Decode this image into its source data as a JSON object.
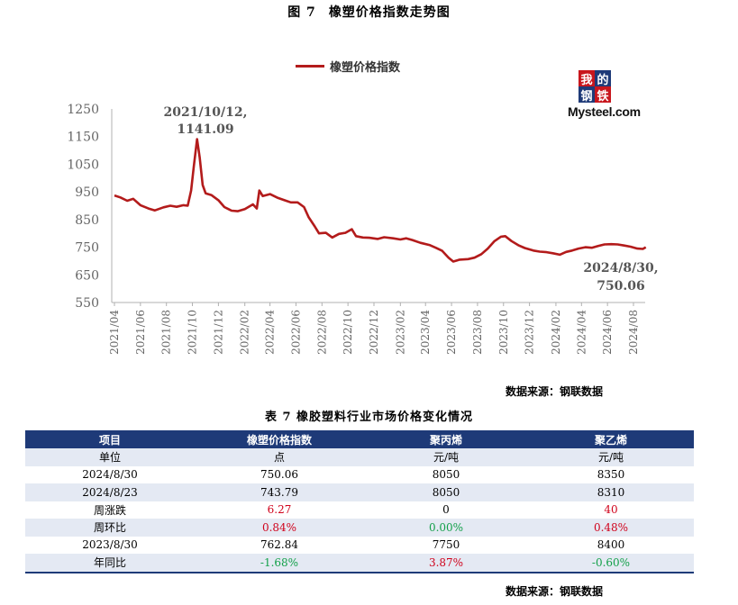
{
  "figure": {
    "label": "图 7",
    "title": "橡塑价格指数走势图"
  },
  "chart_data": {
    "type": "line",
    "series": [
      {
        "name": "橡塑价格指数",
        "color": "#b31b1b",
        "points": [
          [
            "2021-04-01",
            937
          ],
          [
            "2021-04-15",
            930
          ],
          [
            "2021-05-01",
            918
          ],
          [
            "2021-05-15",
            925
          ],
          [
            "2021-06-01",
            902
          ],
          [
            "2021-06-20",
            890
          ],
          [
            "2021-07-05",
            883
          ],
          [
            "2021-07-25",
            894
          ],
          [
            "2021-08-10",
            900
          ],
          [
            "2021-08-25",
            896
          ],
          [
            "2021-09-10",
            902
          ],
          [
            "2021-09-20",
            900
          ],
          [
            "2021-09-28",
            955
          ],
          [
            "2021-10-04",
            1040
          ],
          [
            "2021-10-12",
            1141.09
          ],
          [
            "2021-10-18",
            1075
          ],
          [
            "2021-10-25",
            975
          ],
          [
            "2021-11-01",
            945
          ],
          [
            "2021-11-15",
            938
          ],
          [
            "2021-12-01",
            920
          ],
          [
            "2021-12-15",
            895
          ],
          [
            "2022-01-01",
            882
          ],
          [
            "2022-01-15",
            880
          ],
          [
            "2022-02-01",
            888
          ],
          [
            "2022-02-20",
            905
          ],
          [
            "2022-03-01",
            890
          ],
          [
            "2022-03-07",
            955
          ],
          [
            "2022-03-15",
            935
          ],
          [
            "2022-04-01",
            942
          ],
          [
            "2022-04-20",
            928
          ],
          [
            "2022-05-05",
            920
          ],
          [
            "2022-05-20",
            912
          ],
          [
            "2022-06-05",
            912
          ],
          [
            "2022-06-20",
            895
          ],
          [
            "2022-07-01",
            858
          ],
          [
            "2022-07-15",
            825
          ],
          [
            "2022-07-25",
            800
          ],
          [
            "2022-08-10",
            802
          ],
          [
            "2022-08-25",
            785
          ],
          [
            "2022-09-10",
            798
          ],
          [
            "2022-09-25",
            802
          ],
          [
            "2022-10-10",
            815
          ],
          [
            "2022-10-20",
            790
          ],
          [
            "2022-11-05",
            785
          ],
          [
            "2022-11-20",
            784
          ],
          [
            "2022-12-10",
            780
          ],
          [
            "2022-12-25",
            786
          ],
          [
            "2023-01-15",
            782
          ],
          [
            "2023-02-01",
            778
          ],
          [
            "2023-02-15",
            782
          ],
          [
            "2023-03-01",
            776
          ],
          [
            "2023-03-20",
            766
          ],
          [
            "2023-04-10",
            758
          ],
          [
            "2023-04-25",
            748
          ],
          [
            "2023-05-10",
            737
          ],
          [
            "2023-05-25",
            712
          ],
          [
            "2023-06-05",
            698
          ],
          [
            "2023-06-20",
            705
          ],
          [
            "2023-07-10",
            707
          ],
          [
            "2023-07-25",
            712
          ],
          [
            "2023-08-10",
            725
          ],
          [
            "2023-08-25",
            745
          ],
          [
            "2023-09-10",
            772
          ],
          [
            "2023-09-25",
            788
          ],
          [
            "2023-10-05",
            790
          ],
          [
            "2023-10-20",
            772
          ],
          [
            "2023-11-05",
            757
          ],
          [
            "2023-11-20",
            747
          ],
          [
            "2023-12-10",
            738
          ],
          [
            "2023-12-25",
            734
          ],
          [
            "2024-01-10",
            732
          ],
          [
            "2024-01-25",
            728
          ],
          [
            "2024-02-10",
            723
          ],
          [
            "2024-02-25",
            733
          ],
          [
            "2024-03-10",
            738
          ],
          [
            "2024-03-25",
            745
          ],
          [
            "2024-04-10",
            750
          ],
          [
            "2024-04-25",
            748
          ],
          [
            "2024-05-10",
            754
          ],
          [
            "2024-05-25",
            760
          ],
          [
            "2024-06-10",
            761
          ],
          [
            "2024-06-25",
            760
          ],
          [
            "2024-07-10",
            756
          ],
          [
            "2024-07-25",
            752
          ],
          [
            "2024-08-10",
            745
          ],
          [
            "2024-08-23",
            743.79
          ],
          [
            "2024-08-30",
            750.06
          ]
        ]
      }
    ],
    "ylim": [
      550,
      1250
    ],
    "yticks": [
      "550",
      "650",
      "750",
      "850",
      "950",
      "1050",
      "1150",
      "1250"
    ],
    "xticks": [
      "2021/04",
      "2021/06",
      "2021/08",
      "2021/10",
      "2021/12",
      "2022/02",
      "2022/04",
      "2022/06",
      "2022/08",
      "2022/10",
      "2022/12",
      "2023/02",
      "2023/04",
      "2023/06",
      "2023/08",
      "2023/10",
      "2023/12",
      "2024/02",
      "2024/04",
      "2024/06",
      "2024/08"
    ],
    "annotations": [
      {
        "date": "2021-10-12",
        "lines": [
          "2021/10/12,",
          "1141.09"
        ]
      },
      {
        "date": "2024-08-30",
        "lines": [
          "2024/8/30,",
          "750.06"
        ]
      }
    ],
    "legend": "top-center",
    "grid": false
  },
  "logo": {
    "chars": [
      "我",
      "的",
      "钢",
      "铁"
    ],
    "brand": "Mysteel.com",
    "colors": [
      "#c8161d",
      "#1e3a78",
      "#1e3a78",
      "#c8161d"
    ]
  },
  "chart_source": "数据来源：钢联数据",
  "table": {
    "title": "表 7 橡胶塑料行业市场价格变化情况",
    "headers": [
      "项目",
      "橡塑价格指数",
      "聚丙烯",
      "聚乙烯"
    ],
    "rows": [
      {
        "cells": [
          "单位",
          "点",
          "元/吨",
          "元/吨"
        ],
        "colors": [
          "",
          "",
          "",
          ""
        ]
      },
      {
        "cells": [
          "2024/8/30",
          "750.06",
          "8050",
          "8350"
        ],
        "colors": [
          "",
          "",
          "",
          ""
        ]
      },
      {
        "cells": [
          "2024/8/23",
          "743.79",
          "8050",
          "8310"
        ],
        "colors": [
          "",
          "",
          "",
          ""
        ]
      },
      {
        "cells": [
          "周涨跌",
          "6.27",
          "0",
          "40"
        ],
        "colors": [
          "",
          "red",
          "",
          "red"
        ]
      },
      {
        "cells": [
          "周环比",
          "0.84%",
          "0.00%",
          "0.48%"
        ],
        "colors": [
          "",
          "red",
          "green",
          "red"
        ]
      },
      {
        "cells": [
          "2023/8/30",
          "762.84",
          "7750",
          "8400"
        ],
        "colors": [
          "",
          "",
          "",
          ""
        ]
      },
      {
        "cells": [
          "年同比",
          "-1.68%",
          "3.87%",
          "-0.60%"
        ],
        "colors": [
          "",
          "green",
          "red",
          "green"
        ]
      }
    ]
  },
  "table_source": "数据来源：钢联数据"
}
